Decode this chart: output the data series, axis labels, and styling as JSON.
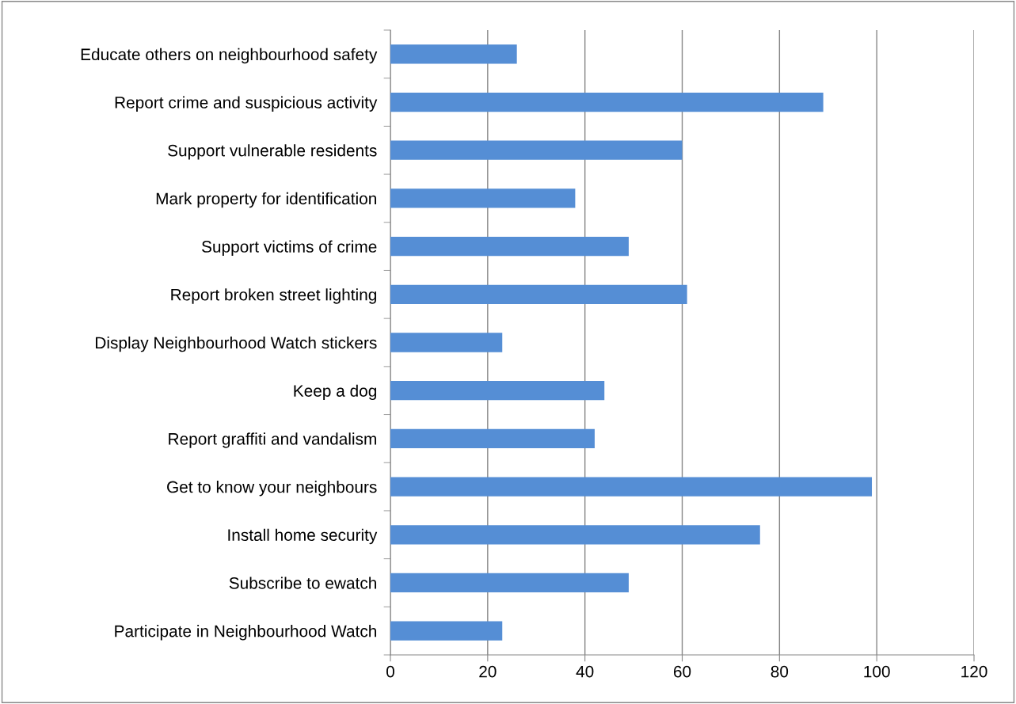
{
  "chart_data": {
    "type": "bar",
    "orientation": "horizontal",
    "categories": [
      "Educate others on neighbourhood safety",
      "Report crime and suspicious activity",
      "Support vulnerable residents",
      "Mark property for identification",
      "Support victims of crime",
      "Report broken street lighting",
      "Display Neighbourhood Watch stickers",
      "Keep a dog",
      "Report graffiti and vandalism",
      "Get to know your neighbours",
      "Install home security",
      "Subscribe to ewatch",
      "Participate in Neighbourhood Watch"
    ],
    "values": [
      26,
      89,
      60,
      38,
      49,
      61,
      23,
      44,
      42,
      99,
      76,
      49,
      23
    ],
    "color": "#558ed5",
    "xlim": [
      0,
      120
    ],
    "xticks": [
      0,
      20,
      40,
      60,
      80,
      100,
      120
    ],
    "grid": "x",
    "legend": false
  }
}
